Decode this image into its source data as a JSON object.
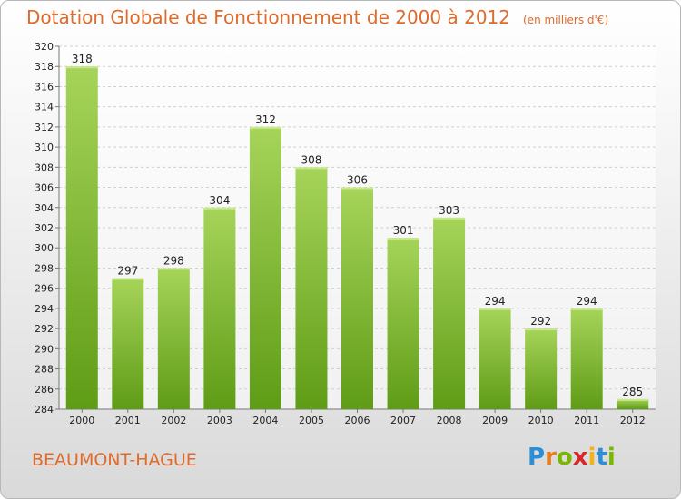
{
  "header": {
    "title": "Dotation Globale de Fonctionnement de 2000 à 2012",
    "unit": "(en milliers d'€)"
  },
  "footer": {
    "city": "BEAUMONT-HAGUE",
    "logo": {
      "letters": [
        "P",
        "r",
        "o",
        "x",
        "i",
        "t",
        "i"
      ],
      "colors": [
        "#2a8fd6",
        "#e87d1e",
        "#7ab800",
        "#d9262a",
        "#f2b21b",
        "#2a8fd6",
        "#7ab800"
      ]
    }
  },
  "colors": {
    "bar_light": "#a6d45a",
    "bar_dark": "#5f9c16",
    "grid": "#cfcfcf",
    "title": "#e06a2a"
  },
  "chart_data": {
    "type": "bar",
    "categories": [
      "2000",
      "2001",
      "2002",
      "2003",
      "2004",
      "2005",
      "2006",
      "2007",
      "2008",
      "2009",
      "2010",
      "2011",
      "2012"
    ],
    "values": [
      318,
      297,
      298,
      304,
      312,
      308,
      306,
      301,
      303,
      294,
      292,
      294,
      285
    ],
    "title": "Dotation Globale de Fonctionnement de 2000 à 2012",
    "subtitle": "(en milliers d'€)",
    "xlabel": "",
    "ylabel": "",
    "ylim": [
      284,
      320
    ],
    "yticks": [
      284,
      286,
      288,
      290,
      292,
      294,
      296,
      298,
      300,
      302,
      304,
      306,
      308,
      310,
      312,
      314,
      316,
      318,
      320
    ],
    "grid": true,
    "data_labels": true
  }
}
